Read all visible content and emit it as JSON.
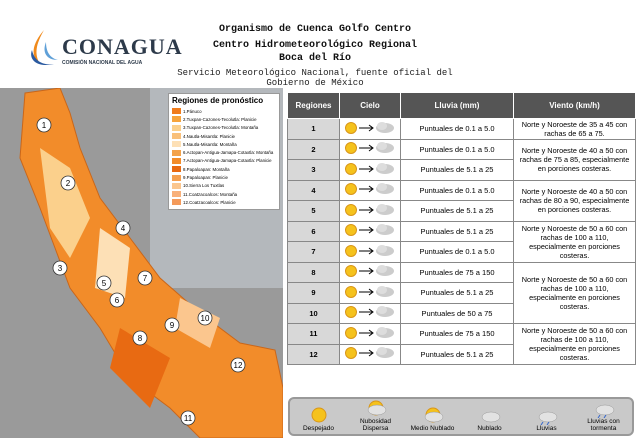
{
  "header": {
    "logo": "CONAGUA",
    "logo_subtitle": "COMISIÓN NACIONAL DEL AGUA",
    "title_lines": [
      "Organismo de Cuenca Golfo Centro",
      "Centro Hidrometeorológico Regional",
      "Boca del Río"
    ],
    "subtitle": "Servicio Meteorológico Nacional, fuente oficial del Gobierno de México"
  },
  "map": {
    "legend_title": "Regiones de pronóstico",
    "legend_items": [
      {
        "label": "1.Pánuco",
        "color": "#f07c1c"
      },
      {
        "label": "2.Tuxpan-Cazones-Tecolutla: Planicie",
        "color": "#f6a43c"
      },
      {
        "label": "3.Tuxpan-Cazones-Tecolutla: Montaña",
        "color": "#fbd08c"
      },
      {
        "label": "4.Nautla-Misantla: Planicie",
        "color": "#f9c07a"
      },
      {
        "label": "5.Nautla-Misantla: Montaña",
        "color": "#fde0b6"
      },
      {
        "label": "6.Actopan-Antigua-Jamapa-Cotaxtla: Montaña",
        "color": "#f3a24a"
      },
      {
        "label": "7.Actopan-Antigua-Jamapa-Cotaxtla: Planicie",
        "color": "#f28c2a"
      },
      {
        "label": "8.Papaloapan: Montaña",
        "color": "#e86a12"
      },
      {
        "label": "9.Papaloapan: Planicie",
        "color": "#f5a050"
      },
      {
        "label": "10.Sierra Los Tuxtlas",
        "color": "#fbc68e"
      },
      {
        "label": "11.Coatzacoalcos: Montaña",
        "color": "#f8b07a"
      },
      {
        "label": "12.Coatzacoalcos: Planicie",
        "color": "#f49a5a"
      }
    ],
    "markers": [
      "1",
      "2",
      "3",
      "4",
      "5",
      "6",
      "7",
      "8",
      "9",
      "10",
      "11",
      "12"
    ]
  },
  "table": {
    "headers": [
      "Regiones",
      "Cielo",
      "Lluvia (mm)",
      "Viento (km/h)"
    ],
    "groups": [
      {
        "rows": [
          {
            "region": "1",
            "rain": "Puntuales de 0.1 a 5.0"
          }
        ],
        "wind": "Norte y Noroeste de 35 a 45 con rachas de 65 a 75."
      },
      {
        "rows": [
          {
            "region": "2",
            "rain": "Puntuales de 0.1 a 5.0"
          },
          {
            "region": "3",
            "rain": "Puntuales de 5.1 a 25"
          }
        ],
        "wind": "Norte y Noroeste de 40 a 50 con rachas de 75 a 85, especialmente en porciones costeras."
      },
      {
        "rows": [
          {
            "region": "4",
            "rain": "Puntuales de 0.1 a 5.0"
          },
          {
            "region": "5",
            "rain": "Puntuales de 5.1 a 25"
          }
        ],
        "wind": "Norte y Noroeste de 40 a 50 con rachas de 80 a 90, especialmente en porciones costeras."
      },
      {
        "rows": [
          {
            "region": "6",
            "rain": "Puntuales de 5.1 a 25"
          },
          {
            "region": "7",
            "rain": "Puntuales de 0.1 a 5.0"
          }
        ],
        "wind": "Norte y Noroeste de 50 a 60 con rachas de 100 a 110, especialmente en porciones costeras."
      },
      {
        "rows": [
          {
            "region": "8",
            "rain": "Puntuales de 75 a 150"
          },
          {
            "region": "9",
            "rain": "Puntuales de 5.1 a 25"
          },
          {
            "region": "10",
            "rain": "Puntuales de 50 a 75"
          }
        ],
        "wind": "Norte y Noroeste de 50 a 60 con rachas de 100 a 110, especialmente en porciones costeras."
      },
      {
        "rows": [
          {
            "region": "11",
            "rain": "Puntuales de 75 a 150"
          },
          {
            "region": "12",
            "rain": "Puntuales de 5.1 a 25"
          }
        ],
        "wind": "Norte y Noroeste de 50 a 60 con rachas de 100 a 110, especialmente en porciones costeras."
      }
    ]
  },
  "sky_legend": [
    "Despejado",
    "Nubosidad Dispersa",
    "Medio Nublado",
    "Nublado",
    "Lluvias",
    "Lluvias con tormenta"
  ]
}
